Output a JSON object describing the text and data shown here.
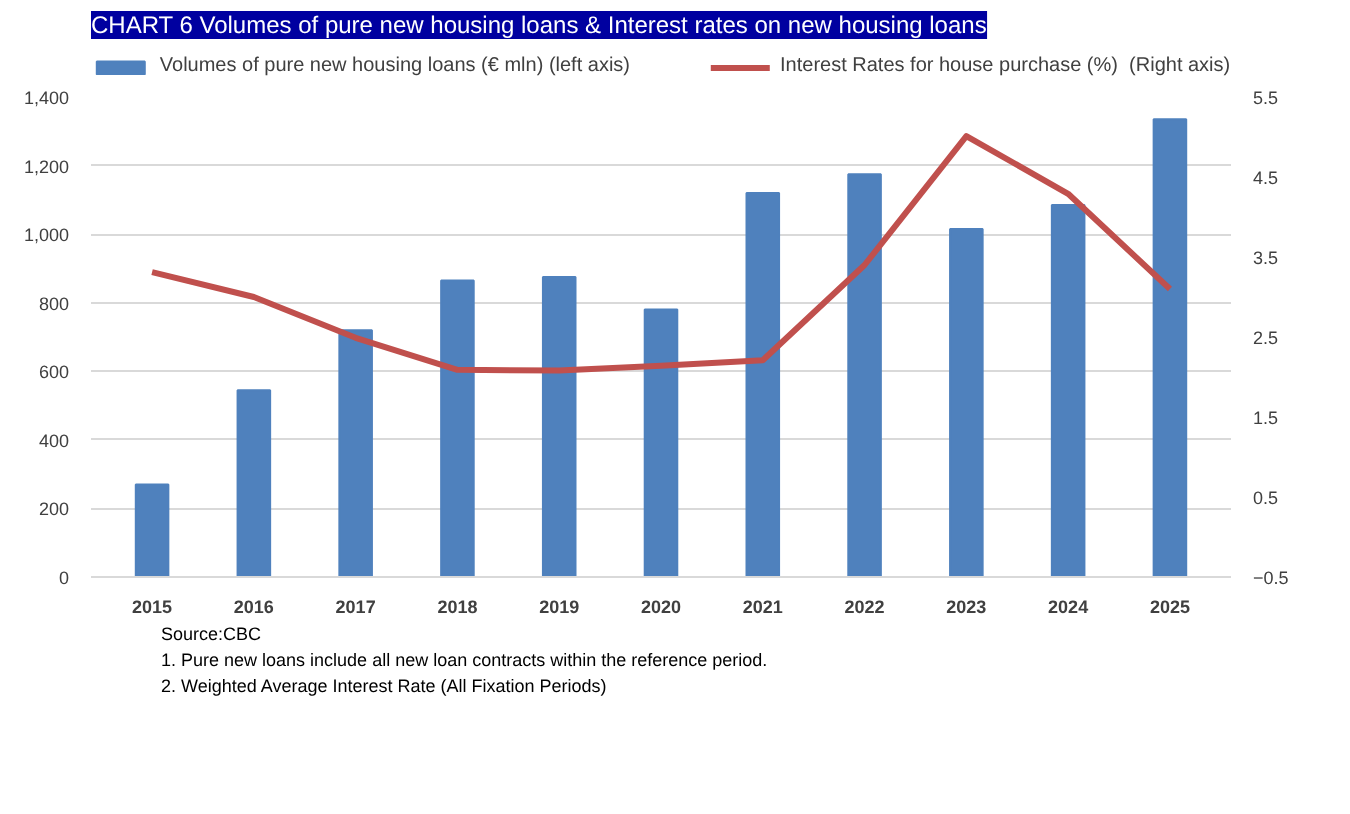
{
  "chart_data": {
    "type": "bar",
    "title": "CHART 6 Volumes of pure new housing loans & Interest rates on new housing loans",
    "categories": [
      "2015",
      "2016",
      "2017",
      "2018",
      "2019",
      "2020",
      "2021",
      "2022",
      "2023",
      "2024",
      "2025"
    ],
    "series": [
      {
        "name": "Volumes of pure new housing loans (€ mln) (left axis)",
        "color": "#4f81bd",
        "values": [
          270,
          545,
          720,
          865,
          875,
          780,
          1120,
          1175,
          1015,
          1085,
          1335
        ]
      },
      {
        "name": "Interest Rates for house purchase (%)  (Right axis)",
        "type": "line",
        "axis": "y2",
        "color": "#c0504d",
        "values": [
          3.31,
          3.0,
          2.49,
          2.09,
          2.08,
          2.14,
          2.21,
          3.4,
          5.01,
          4.29,
          3.1
        ]
      }
    ],
    "ylim": [
      0,
      1400
    ],
    "yticks": [
      0,
      {
        "value": 200,
        "label": "200"
      },
      {
        "value": 400,
        "label": "400"
      },
      {
        "value": 600,
        "label": "600"
      },
      {
        "value": 800,
        "label": "800"
      },
      {
        "value": 1000,
        "label": "1,000"
      },
      {
        "value": 1200,
        "label": "1,200"
      },
      {
        "value": 1400,
        "label": "1,400"
      }
    ],
    "y2lim": [
      -0.5,
      5.5
    ],
    "y2ticks": [
      -0.5,
      0.5,
      1.5,
      2.5,
      3.5,
      4.5,
      5.5
    ],
    "grid": "y",
    "legend": "top",
    "marker": "none",
    "line_style": "solid",
    "annotations": [
      "Source:CBC",
      "1. Pure new loans include all new loan contracts within the reference period.",
      "2. Weighted Average Interest Rate (All Fixation Periods)"
    ]
  }
}
